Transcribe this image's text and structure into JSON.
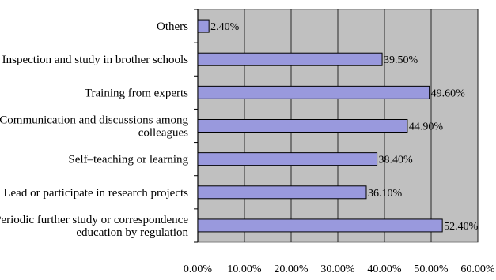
{
  "chart_data": {
    "type": "bar",
    "orientation": "horizontal",
    "categories": [
      "Others",
      "Inspection and study in brother schools",
      "Training from experts",
      "Communication and discussions among colleagues",
      "Self–teaching or learning",
      "Lead or participate in research projects",
      "Periodic further study or correspondence education by regulation"
    ],
    "category_lines": [
      [
        "Others"
      ],
      [
        "Inspection and study in brother schools"
      ],
      [
        "Training from experts"
      ],
      [
        "Communication and discussions among",
        "colleagues"
      ],
      [
        "Self–teaching or learning"
      ],
      [
        "Lead or participate in research projects"
      ],
      [
        "Periodic further study or correspondence",
        "education by regulation"
      ]
    ],
    "values": [
      2.4,
      39.5,
      49.6,
      44.9,
      38.4,
      36.1,
      52.4
    ],
    "data_labels": [
      "2.40%",
      "39.50%",
      "49.60%",
      "44.90%",
      "38.40%",
      "36.10%",
      "52.40%"
    ],
    "xlim": [
      0,
      60
    ],
    "x_ticks": [
      0,
      10,
      20,
      30,
      40,
      50,
      60
    ],
    "x_tick_labels": [
      "0.00%",
      "10.00%",
      "20.00%",
      "30.00%",
      "40.00%",
      "50.00%",
      "60.00%"
    ],
    "grid": true,
    "legend": "none",
    "colors": {
      "plot_background": "#c0c0c0",
      "bar_fill": "#9999dd",
      "bar_stroke": "#000000",
      "gridline": "#000000"
    }
  }
}
